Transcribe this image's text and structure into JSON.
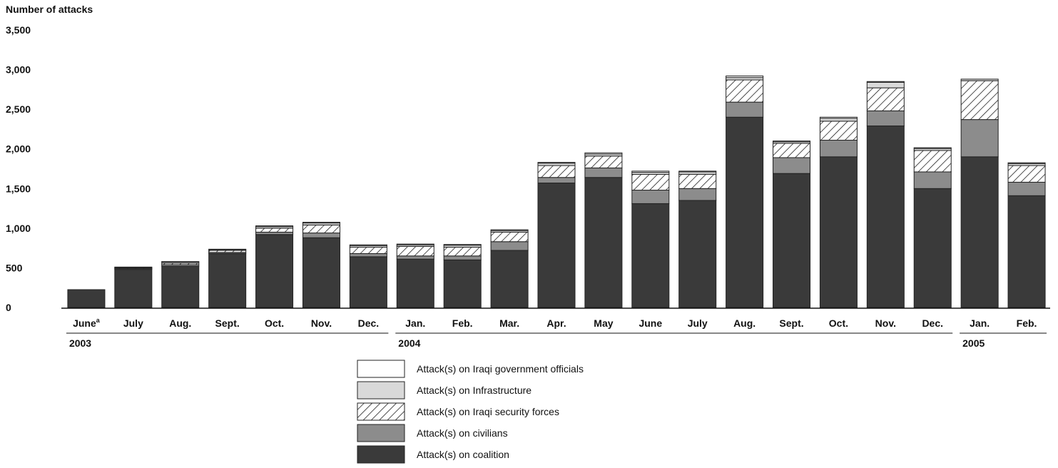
{
  "chart_data": {
    "type": "bar",
    "stacked": true,
    "ylabel": "Number of attacks",
    "ylim": [
      0,
      3500
    ],
    "yticks": [
      0,
      500,
      1000,
      1500,
      2000,
      2500,
      3000,
      3500
    ],
    "ytick_labels": [
      "0",
      "500",
      "1,000",
      "1,500",
      "2,000",
      "2,500",
      "3,000",
      "3,500"
    ],
    "categories": [
      "June",
      "July",
      "Aug.",
      "Sept.",
      "Oct.",
      "Nov.",
      "Dec.",
      "Jan.",
      "Feb.",
      "Mar.",
      "Apr.",
      "May",
      "June",
      "July",
      "Aug.",
      "Sept.",
      "Oct.",
      "Nov.",
      "Dec.",
      "Jan.",
      "Feb."
    ],
    "category_note": {
      "index": 0,
      "mark": "a"
    },
    "year_groups": [
      {
        "label": "2003",
        "start": 0,
        "end": 6
      },
      {
        "label": "2004",
        "start": 7,
        "end": 18
      },
      {
        "label": "2005",
        "start": 19,
        "end": 20
      }
    ],
    "series": [
      {
        "name": "Attack(s) on coalition",
        "color": "#3a3a3a",
        "pattern": "solid",
        "values": [
          225,
          480,
          520,
          680,
          920,
          880,
          640,
          610,
          600,
          720,
          1570,
          1640,
          1310,
          1350,
          2400,
          1690,
          1900,
          2290,
          1500,
          1900,
          1410
        ]
      },
      {
        "name": "Attack(s) on civilians",
        "color": "#8c8c8c",
        "pattern": "solid",
        "values": [
          0,
          10,
          20,
          15,
          30,
          60,
          40,
          40,
          50,
          110,
          70,
          120,
          170,
          150,
          190,
          200,
          210,
          190,
          210,
          470,
          170
        ]
      },
      {
        "name": "Attack(s) on Iraqi security forces",
        "color": "#ffffff",
        "pattern": "hatch",
        "values": [
          0,
          10,
          20,
          25,
          50,
          100,
          80,
          120,
          110,
          120,
          150,
          150,
          200,
          180,
          280,
          180,
          240,
          290,
          270,
          490,
          210
        ]
      },
      {
        "name": "Attack(s) on Infrastructure",
        "color": "#d9d9d9",
        "pattern": "solid",
        "values": [
          0,
          5,
          15,
          10,
          20,
          25,
          20,
          20,
          25,
          20,
          30,
          25,
          25,
          30,
          30,
          20,
          35,
          70,
          25,
          20,
          25
        ]
      },
      {
        "name": "Attack(s) on Iraqi government officials",
        "color": "#ffffff",
        "pattern": "solid",
        "values": [
          0,
          5,
          5,
          5,
          10,
          10,
          10,
          10,
          10,
          10,
          10,
          15,
          15,
          10,
          20,
          10,
          15,
          10,
          10,
          0,
          10
        ]
      }
    ],
    "legend_order": [
      4,
      3,
      2,
      1,
      0
    ],
    "legend_position": "bottom-center",
    "grid": false
  }
}
